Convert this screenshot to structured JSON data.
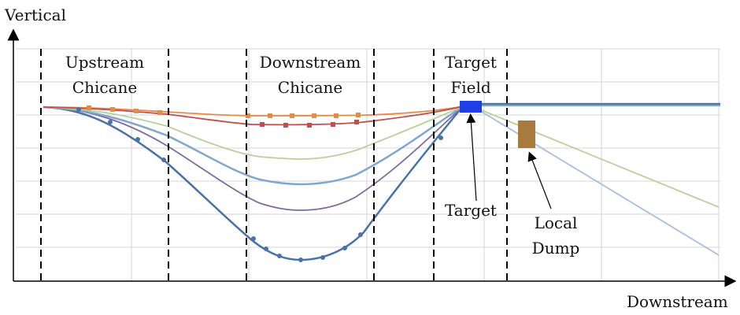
{
  "axes": {
    "y_label": "Vertical",
    "x_label": "Downstream"
  },
  "regions": [
    {
      "line1": "Upstream",
      "line2": "Chicane"
    },
    {
      "line1": "Downstream",
      "line2": "Chicane"
    },
    {
      "line1": "Target",
      "line2": "Field"
    }
  ],
  "annotations": {
    "target": "Target",
    "dump_line1": "Local",
    "dump_line2": "Dump"
  },
  "colors": {
    "blue_dark": "#4a72a8",
    "blue_light": "#7ea6cf",
    "purple": "#7e6a9e",
    "green": "#b9d19a",
    "orange": "#e08d4a",
    "red": "#c0504d",
    "target_fill": "#1f3fe6",
    "dump_fill": "#a97a3e"
  }
}
